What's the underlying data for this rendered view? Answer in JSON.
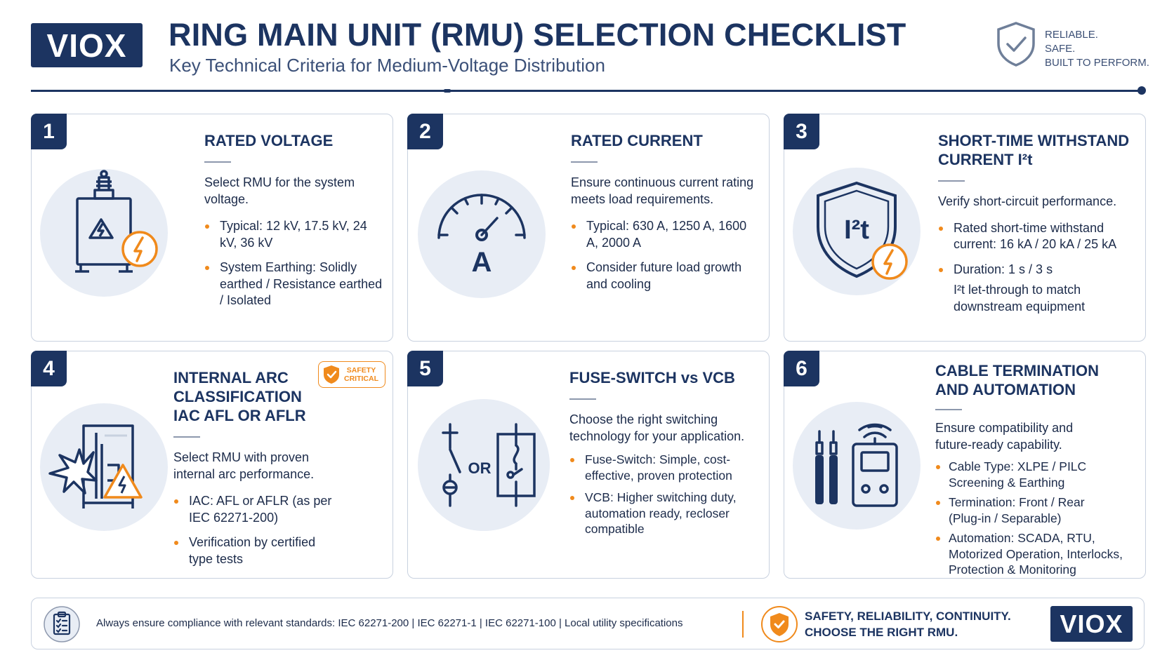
{
  "brand": {
    "logo_text": "VIOX"
  },
  "header": {
    "title": "RING MAIN UNIT (RMU) SELECTION CHECKLIST",
    "subtitle": "Key Technical Criteria for Medium-Voltage Distribution",
    "tagline": [
      "RELIABLE.",
      "SAFE.",
      "BUILT TO PERFORM."
    ]
  },
  "colors": {
    "navy": "#1c3461",
    "accent_orange": "#f08a1c",
    "icon_bg": "#e8edf5",
    "border": "#c8d1df"
  },
  "cards": [
    {
      "number": "1",
      "title": "RATED VOLTAGE",
      "intro": "Select RMU for the system voltage.",
      "icon": "transformer-icon",
      "bullets": [
        "Typical: 12 kV, 17.5 kV, 24 kV, 36 kV",
        "System Earthing: Solidly earthed / Resistance earthed / Isolated"
      ]
    },
    {
      "number": "2",
      "title": "RATED CURRENT",
      "intro": "Ensure continuous current rating meets load requirements.",
      "icon": "ammeter-gauge-icon",
      "gauge_label": "A",
      "bullets": [
        "Typical: 630 A, 1250 A, 1600 A, 2000 A",
        "Consider future load growth and cooling"
      ]
    },
    {
      "number": "3",
      "title": "SHORT-TIME WITHSTAND CURRENT I²t",
      "intro": "Verify short-circuit performance.",
      "icon": "shield-i2t-icon",
      "icon_label": "I²t",
      "bullets": [
        "Rated short-time withstand current: 16 kA / 20 kA / 25 kA",
        "Duration: 1 s / 3 s"
      ],
      "extra_line": "I²t let-through to match downstream equipment"
    },
    {
      "number": "4",
      "title": "INTERNAL ARC CLASSIFICATION IAC AFL OR AFLR",
      "badge": [
        "SAFETY",
        "CRITICAL"
      ],
      "intro": "Select RMU with proven internal arc performance.",
      "icon": "internal-arc-icon",
      "bullets": [
        "IAC: AFL or AFLR (as per IEC 62271-200)",
        "Verification by certified type tests"
      ]
    },
    {
      "number": "5",
      "title": "FUSE-SWITCH vs VCB",
      "intro": "Choose the right switching technology for your application.",
      "icon": "fuse-switch-vs-vcb-icon",
      "icon_label": "OR",
      "bullets": [
        "Fuse-Switch: Simple, cost-effective, proven protection",
        "VCB: Higher switching duty, automation ready, recloser compatible"
      ]
    },
    {
      "number": "6",
      "title": "CABLE TERMINATION AND AUTOMATION",
      "intro": "Ensure compatibility and future-ready capability.",
      "icon": "cable-rtu-icon",
      "bullets": [
        "Cable Type: XLPE / PILC Screening & Earthing",
        "Termination:  Front / Rear (Plug-in / Separable)",
        "Automation: SCADA, RTU, Motorized Operation, Interlocks, Protection & Monitoring"
      ]
    }
  ],
  "footer": {
    "compliance": "Always ensure compliance with relevant standards:  IEC 62271-200  |  IEC 62271-1  |  IEC 62271-100  |  Local utility specifications",
    "slogan_line1": "SAFETY, RELIABILITY, CONTINUITY.",
    "slogan_line2": "CHOOSE THE RIGHT RMU.",
    "logo_text": "VIOX"
  }
}
